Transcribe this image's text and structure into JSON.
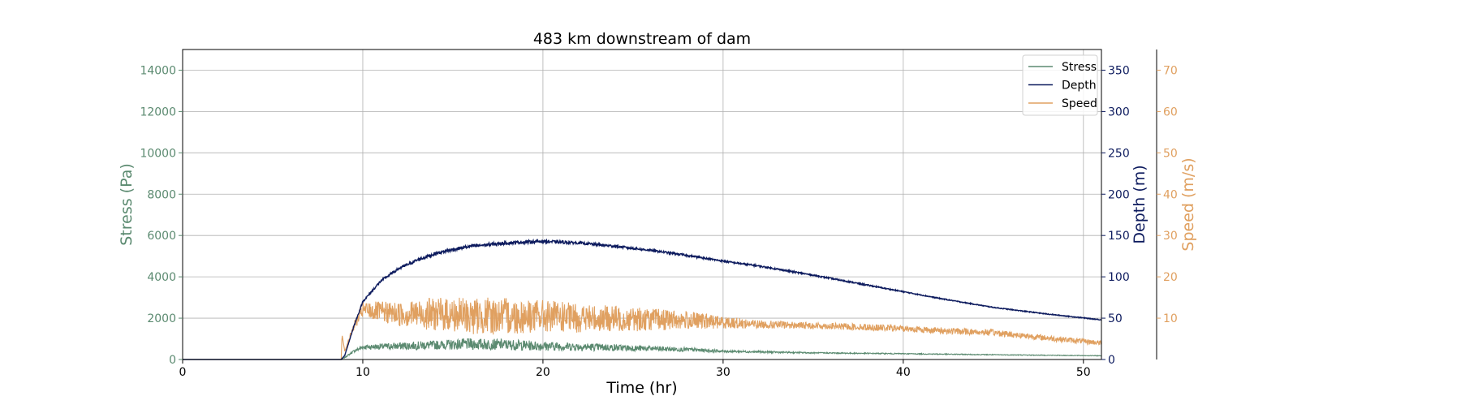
{
  "chart_data": {
    "type": "line",
    "title": "483 km downstream of dam",
    "xlabel": "Time (hr)",
    "xlim": [
      0,
      51
    ],
    "xticks": [
      0,
      10,
      20,
      30,
      40,
      50
    ],
    "grid": true,
    "legend_position": "top-right",
    "axes": {
      "stress": {
        "label": "Stress (Pa)",
        "color": "#5b8a70",
        "ylim": [
          0,
          15000
        ],
        "ticks": [
          0,
          2000,
          4000,
          6000,
          8000,
          10000,
          12000,
          14000
        ]
      },
      "depth": {
        "label": "Depth (m)",
        "color": "#0d1b5e",
        "ylim": [
          0,
          375
        ],
        "ticks": [
          0,
          50,
          100,
          150,
          200,
          250,
          300,
          350
        ]
      },
      "speed": {
        "label": "Speed (m/s)",
        "color": "#e0a060",
        "ylim": [
          0,
          75
        ],
        "ticks": [
          10,
          20,
          30,
          40,
          50,
          60,
          70
        ]
      }
    },
    "series": [
      {
        "name": "Stress",
        "axis": "stress",
        "color": "#5b8a70",
        "x": [
          0,
          8.8,
          9.0,
          9.5,
          10,
          12,
          14,
          16,
          18,
          20,
          22,
          25,
          28,
          30,
          35,
          40,
          45,
          51
        ],
        "y": [
          0,
          0,
          100,
          400,
          600,
          650,
          700,
          750,
          720,
          650,
          620,
          550,
          480,
          400,
          320,
          280,
          230,
          180
        ],
        "noise": [
          0,
          0,
          20,
          60,
          120,
          180,
          220,
          280,
          260,
          230,
          200,
          150,
          100,
          60,
          30,
          25,
          20,
          15
        ]
      },
      {
        "name": "Depth",
        "axis": "depth",
        "color": "#0d1b5e",
        "x": [
          0,
          8.8,
          9.0,
          9.5,
          10,
          11,
          12,
          13,
          14,
          15,
          16,
          18,
          20,
          22,
          24,
          26,
          28,
          30,
          32,
          35,
          38,
          40,
          42,
          45,
          48,
          51
        ],
        "y": [
          0,
          0,
          5,
          40,
          70,
          95,
          110,
          120,
          128,
          133,
          137,
          141,
          143,
          141,
          137,
          132,
          126,
          119,
          113,
          102,
          90,
          82,
          74,
          63,
          55,
          48
        ],
        "noise": [
          0,
          0,
          0,
          1,
          1,
          1.5,
          1.5,
          2,
          2,
          2,
          2,
          2,
          2,
          1.5,
          1.5,
          1.2,
          1.2,
          1,
          1,
          0.8,
          0.8,
          0.6,
          0.6,
          0.5,
          0.5,
          0.5
        ]
      },
      {
        "name": "Speed",
        "axis": "speed",
        "color": "#e0a060",
        "x": [
          0,
          8.8,
          8.85,
          9.0,
          9.5,
          10,
          12,
          14,
          16,
          18,
          20,
          22,
          25,
          28,
          30,
          32,
          35,
          38,
          40,
          42,
          45,
          48,
          51
        ],
        "y": [
          0,
          0,
          6,
          2,
          8,
          12,
          11,
          11,
          10.5,
          10.5,
          10.5,
          10,
          9.8,
          9.5,
          9,
          8.5,
          8.2,
          7.8,
          7.5,
          7,
          6.5,
          5.2,
          4
        ],
        "noise": [
          0,
          0,
          0,
          0,
          1,
          2,
          3,
          4,
          4.5,
          4.5,
          4,
          3.5,
          3,
          2.2,
          1.5,
          1,
          0.8,
          0.8,
          0.8,
          0.8,
          0.8,
          0.7,
          0.6
        ]
      }
    ]
  }
}
